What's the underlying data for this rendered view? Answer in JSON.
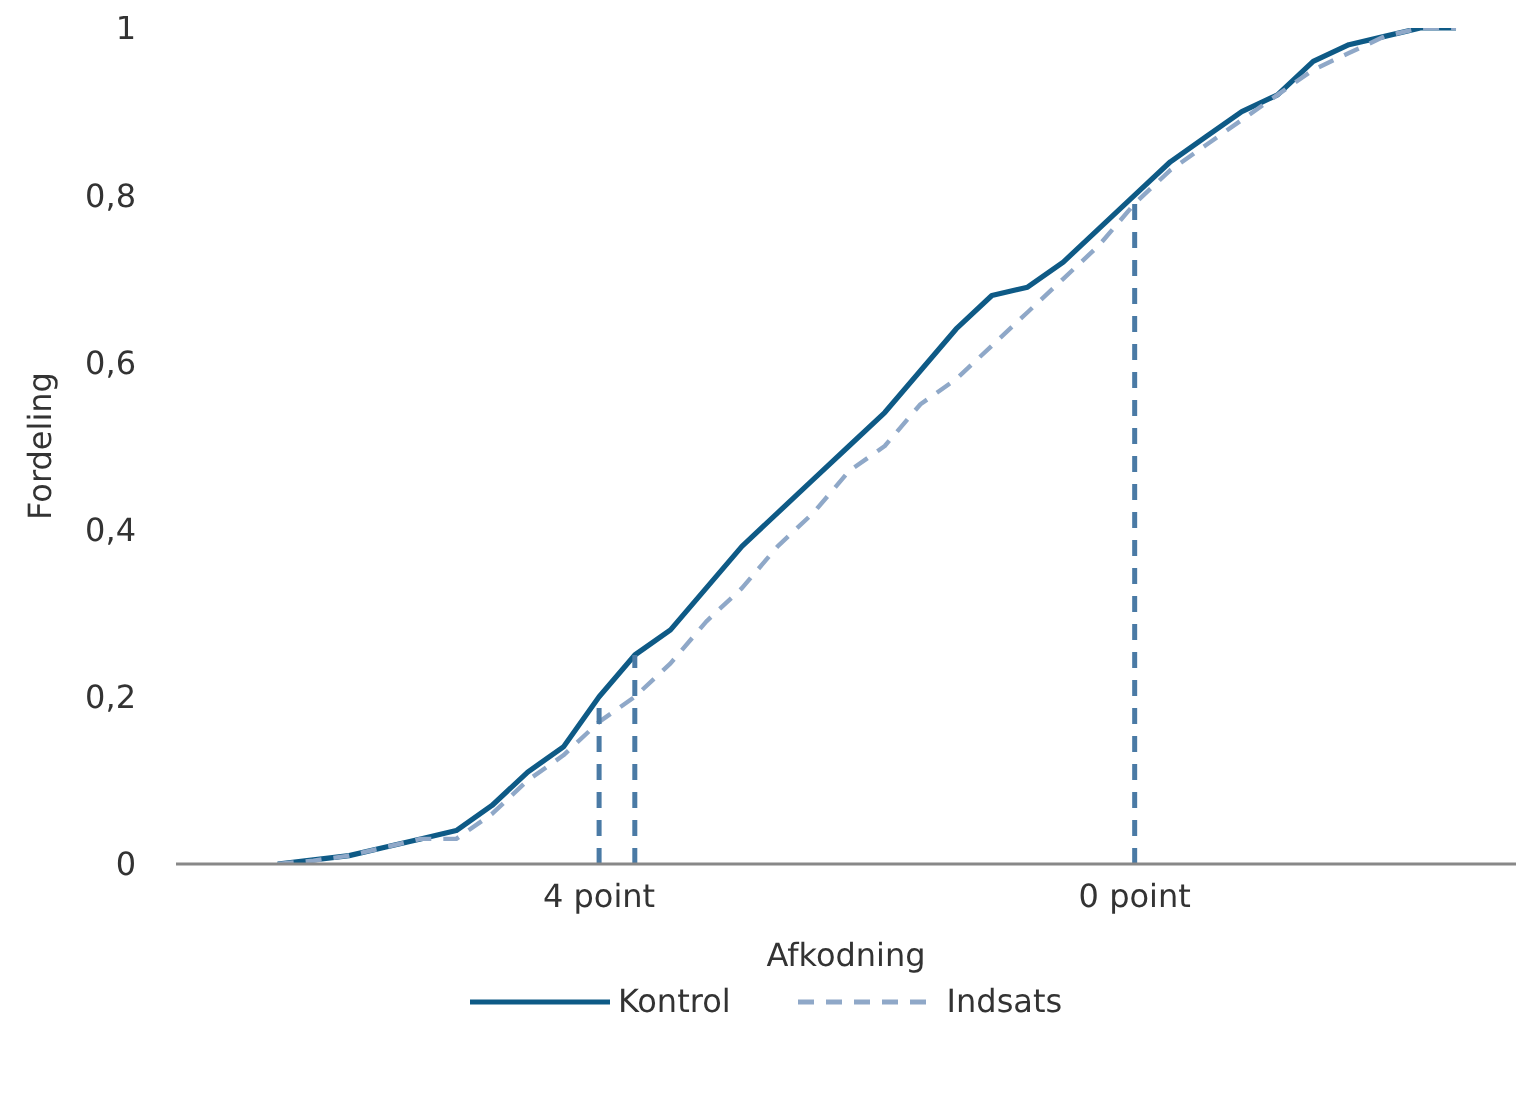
{
  "chart_data": {
    "type": "line",
    "ylabel": "Fordeling",
    "xlabel": "Afkodning",
    "categories": [
      null,
      null,
      null,
      null,
      null,
      null,
      null,
      null,
      null,
      null,
      null,
      null,
      null,
      null,
      null,
      null,
      null,
      null,
      null,
      null,
      null,
      null,
      null,
      null,
      null,
      null,
      null,
      null,
      null,
      null,
      null,
      null,
      null,
      null,
      null
    ],
    "series": [
      {
        "name": "Kontrol",
        "color": "#0e5a86",
        "line_style": "solid",
        "values": [
          0,
          0.005,
          0.01,
          0.02,
          0.03,
          0.04,
          0.07,
          0.11,
          0.14,
          0.2,
          0.25,
          0.28,
          0.33,
          0.38,
          0.42,
          0.46,
          0.5,
          0.54,
          0.59,
          0.64,
          0.68,
          0.69,
          0.72,
          0.76,
          0.8,
          0.84,
          0.87,
          0.9,
          0.92,
          0.96,
          0.98,
          0.99,
          1,
          1,
          null
        ]
      },
      {
        "name": "Indsats",
        "color": "#8fa8c8",
        "line_style": "dashed",
        "values": [
          0,
          0.004,
          0.01,
          0.02,
          0.03,
          0.03,
          0.06,
          0.1,
          0.13,
          0.17,
          0.2,
          0.24,
          0.29,
          0.33,
          0.38,
          0.42,
          0.47,
          0.5,
          0.55,
          0.58,
          0.62,
          0.66,
          0.7,
          0.74,
          0.79,
          0.83,
          0.86,
          0.89,
          0.92,
          0.95,
          0.97,
          0.99,
          1,
          1,
          null
        ]
      }
    ],
    "annotations": [
      "4 point",
      "0 point"
    ],
    "ylim": [
      0,
      1
    ],
    "yticks": [
      0,
      {
        "value": 0.2,
        "label": "0,2"
      },
      {
        "value": 0.4,
        "label": "0,4"
      },
      {
        "value": 0.6,
        "label": "0,6"
      },
      {
        "value": 0.8,
        "label": "0,8"
      },
      1
    ],
    "tick_labels": "y",
    "grid": false,
    "legend": "bottom",
    "marker": "none"
  }
}
